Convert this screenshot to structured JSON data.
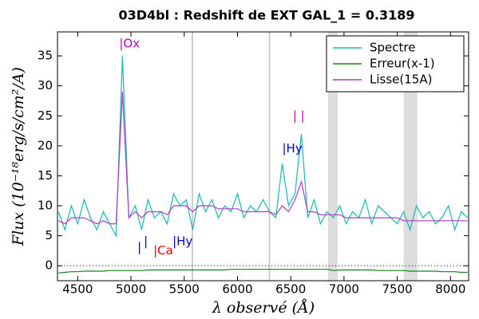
{
  "chart_data": {
    "type": "line",
    "title": "03D4bl : Redshift de EXT GAL_1 = 0.3189",
    "x_label": "λ observé (Å)",
    "y_label": "Flux (10⁻¹⁸erg/s/cm²/A)",
    "x": [
      4320,
      4380,
      4440,
      4500,
      4560,
      4620,
      4680,
      4740,
      4800,
      4860,
      4920,
      4980,
      5040,
      5100,
      5160,
      5220,
      5280,
      5340,
      5400,
      5460,
      5520,
      5580,
      5640,
      5700,
      5760,
      5820,
      5880,
      5940,
      6000,
      6060,
      6120,
      6180,
      6240,
      6300,
      6360,
      6420,
      6480,
      6540,
      6600,
      6660,
      6720,
      6780,
      6840,
      6900,
      6960,
      7020,
      7080,
      7140,
      7200,
      7260,
      7320,
      7380,
      7440,
      7500,
      7560,
      7620,
      7680,
      7740,
      7800,
      7860,
      7920,
      7980,
      8040,
      8100,
      8160
    ],
    "series": [
      {
        "name": "Spectre",
        "color": "#17b8b8",
        "values": [
          9,
          6,
          10,
          7,
          11,
          8,
          6,
          9,
          7,
          5,
          35,
          8,
          10,
          6,
          11,
          8,
          9,
          7,
          12,
          10,
          11,
          6,
          12,
          9,
          11,
          8,
          10,
          9,
          12,
          8,
          10,
          9,
          11,
          9,
          8,
          17,
          10,
          12,
          22,
          8,
          11,
          7,
          9,
          8,
          10,
          7,
          9,
          8,
          11,
          7,
          10,
          9,
          8,
          7,
          9,
          6,
          10,
          8,
          9,
          7,
          8,
          10,
          6,
          9,
          8
        ]
      },
      {
        "name": "Erreur(x-1)",
        "color": "#118811",
        "values": [
          -1.2,
          -1.1,
          -1.0,
          -1.0,
          -0.9,
          -0.9,
          -0.9,
          -0.9,
          -0.8,
          -0.8,
          -0.8,
          -0.8,
          -0.8,
          -0.8,
          -0.7,
          -0.7,
          -0.7,
          -0.7,
          -0.7,
          -0.7,
          -0.7,
          -0.7,
          -0.7,
          -0.7,
          -0.7,
          -0.7,
          -0.7,
          -0.6,
          -0.6,
          -0.6,
          -0.6,
          -0.6,
          -0.6,
          -0.6,
          -0.6,
          -0.6,
          -0.6,
          -0.6,
          -0.6,
          -0.6,
          -0.6,
          -0.6,
          -0.6,
          -0.8,
          -0.7,
          -0.7,
          -0.7,
          -0.7,
          -0.7,
          -0.7,
          -0.8,
          -0.8,
          -0.8,
          -0.8,
          -0.8,
          -0.9,
          -0.9,
          -0.9,
          -0.9,
          -0.9,
          -1.0,
          -1.0,
          -1.0,
          -1.1,
          -1.1
        ]
      },
      {
        "name": "Lisse(15A)",
        "color": "#b03cc8",
        "values": [
          7.5,
          7,
          8,
          8,
          8,
          7.5,
          7,
          7.5,
          7,
          7,
          29,
          8,
          9,
          8,
          9,
          9,
          9,
          8.5,
          10,
          10,
          10,
          9,
          10,
          10,
          10,
          9.5,
          9.5,
          9.5,
          9.5,
          9,
          9,
          9,
          9,
          9,
          8.5,
          10,
          9,
          11,
          14,
          9,
          9,
          8.5,
          8.5,
          8.5,
          8.5,
          8,
          8,
          8,
          8,
          8,
          8,
          8,
          8,
          8,
          7.5,
          7.5,
          7.5,
          7.5,
          7.5,
          7.5,
          7.5,
          7.5,
          7.5,
          7.5,
          7.5
        ]
      }
    ],
    "xlim": [
      4310,
      8170
    ],
    "ylim": [
      -2.5,
      39
    ],
    "xticks": [
      4500,
      5000,
      5500,
      6000,
      6500,
      7000,
      7500,
      8000
    ],
    "yticks": [
      0,
      5,
      10,
      15,
      20,
      25,
      30,
      35
    ],
    "hline": 0,
    "sky_lines": [
      5577,
      6300
    ],
    "shaded_regions": [
      [
        6850,
        6940
      ],
      [
        7560,
        7690
      ]
    ],
    "annotations": [
      {
        "text": "|Ox",
        "x": 4890,
        "y": 37,
        "color": "#bf00bf"
      },
      {
        "text": "|",
        "x": 5060,
        "y": 3,
        "color": "#0000cc"
      },
      {
        "text": "|",
        "x": 5120,
        "y": 4,
        "color": "#0000cc"
      },
      {
        "text": "|Ca",
        "x": 5210,
        "y": 2.5,
        "color": "#ee0000"
      },
      {
        "text": "|Hy",
        "x": 5390,
        "y": 4,
        "color": "#0000cc"
      },
      {
        "text": "|Hy",
        "x": 6420,
        "y": 19.5,
        "color": "#0000cc"
      },
      {
        "text": "| |",
        "x": 6520,
        "y": 25,
        "color": "#bf00bf"
      }
    ],
    "legend": "upper right"
  }
}
